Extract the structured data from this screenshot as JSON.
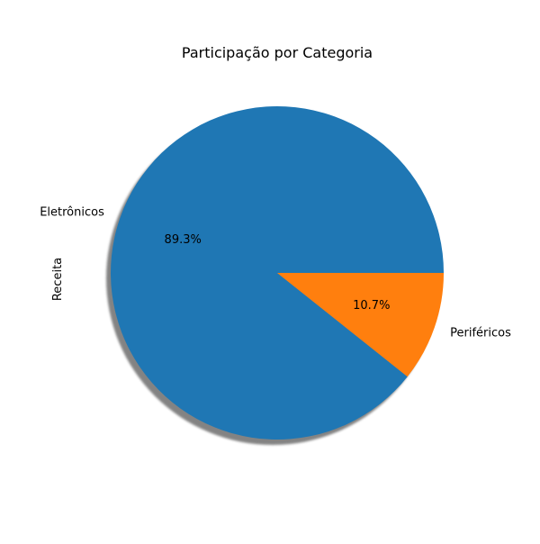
{
  "chart_data": {
    "type": "pie",
    "title": "Participação por Categoria",
    "ylabel": "Receita",
    "labels": [
      "Eletrônicos",
      "Periféricos"
    ],
    "values": [
      89.3,
      10.7
    ],
    "pct_labels": [
      "89.3%",
      "10.7%"
    ],
    "colors": [
      "#1f77b4",
      "#ff7f0e"
    ],
    "shadow": true,
    "start_angle_deg": 0,
    "direction": "counterclockwise"
  }
}
